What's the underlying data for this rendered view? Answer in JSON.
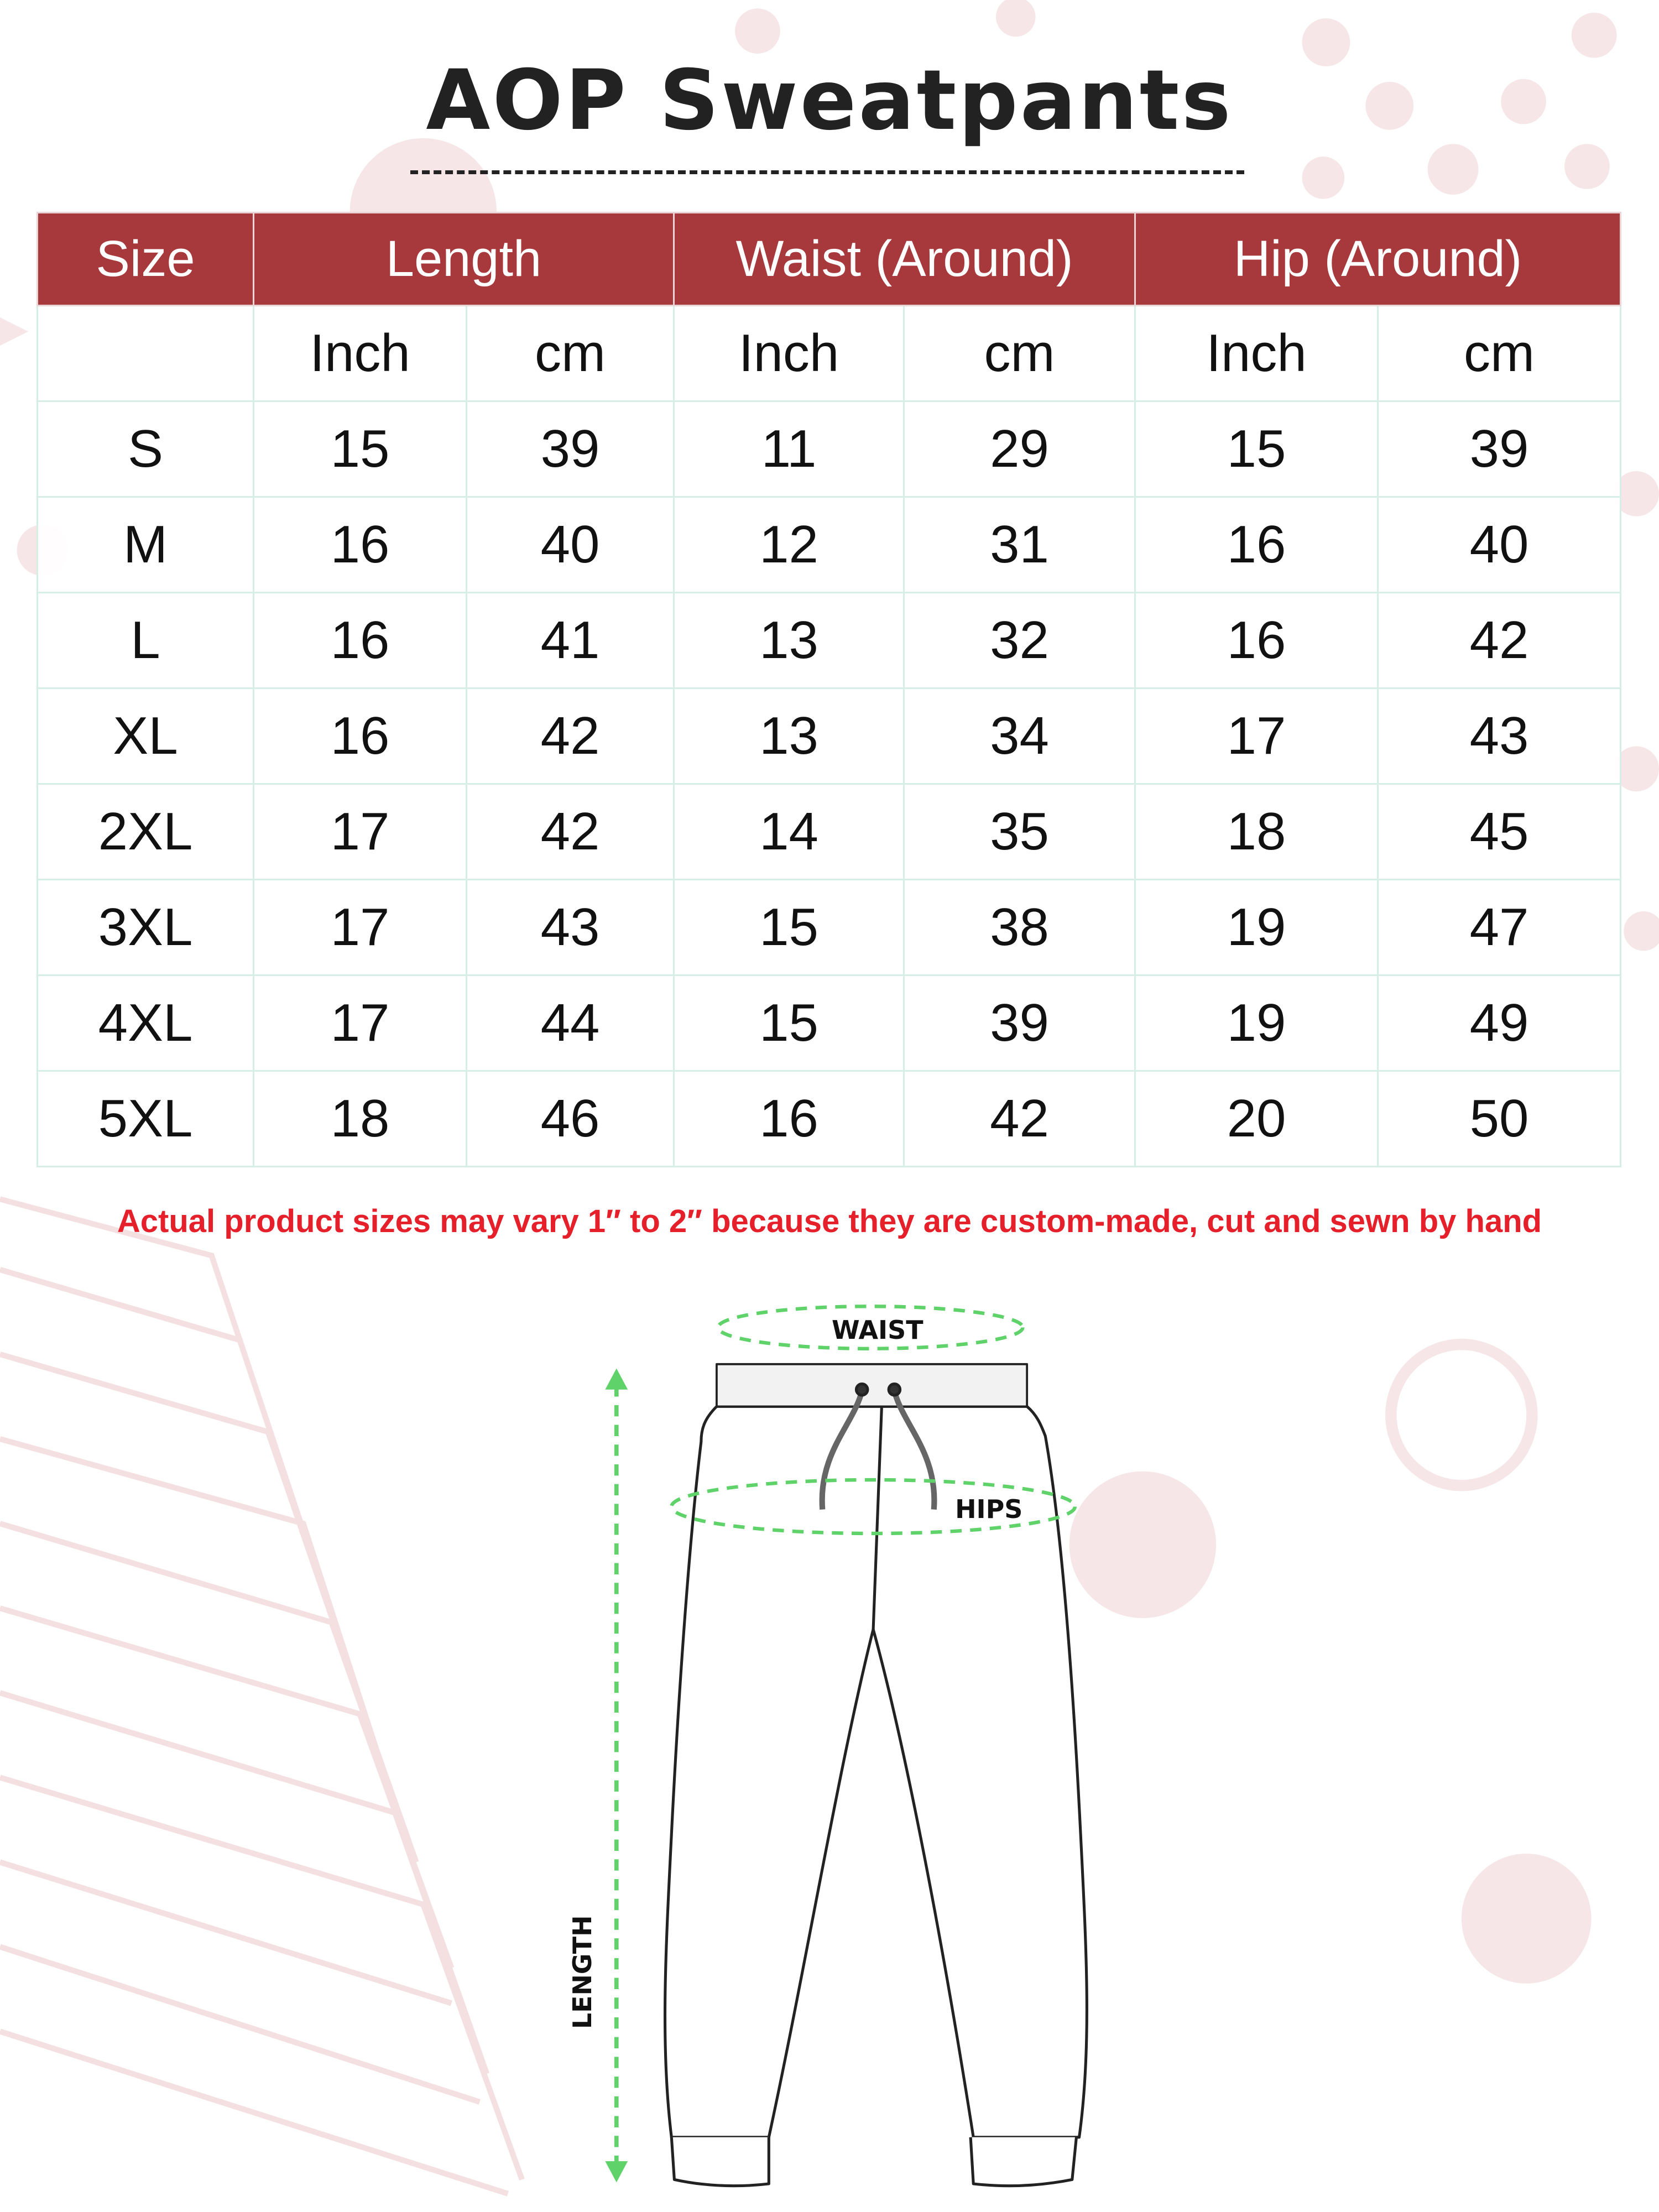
{
  "title": "AOP Sweatpants",
  "colors": {
    "header_bg": "#a7393c",
    "note_text": "#e5202a",
    "measure_guides": "#5fd36a",
    "decor": "#f6e6e7"
  },
  "table": {
    "headers": [
      "Size",
      "Length",
      "Waist (Around)",
      "Hip (Around)"
    ],
    "units": [
      "Inch",
      "cm",
      "Inch",
      "cm",
      "Inch",
      "cm"
    ],
    "rows": [
      [
        "S",
        "15",
        "39",
        "11",
        "29",
        "15",
        "39"
      ],
      [
        "M",
        "16",
        "40",
        "12",
        "31",
        "16",
        "40"
      ],
      [
        "L",
        "16",
        "41",
        "13",
        "32",
        "16",
        "42"
      ],
      [
        "XL",
        "16",
        "42",
        "13",
        "34",
        "17",
        "43"
      ],
      [
        "2XL",
        "17",
        "42",
        "14",
        "35",
        "18",
        "45"
      ],
      [
        "3XL",
        "17",
        "43",
        "15",
        "38",
        "19",
        "47"
      ],
      [
        "4XL",
        "17",
        "44",
        "15",
        "39",
        "19",
        "49"
      ],
      [
        "5XL",
        "18",
        "46",
        "16",
        "42",
        "20",
        "50"
      ]
    ]
  },
  "note": "Actual product sizes may vary 1″ to 2″ because they are custom-made, cut and sewn by hand",
  "diagram": {
    "waist_label": "WAIST",
    "hips_label": "HIPS",
    "length_label": "LENGTH"
  }
}
